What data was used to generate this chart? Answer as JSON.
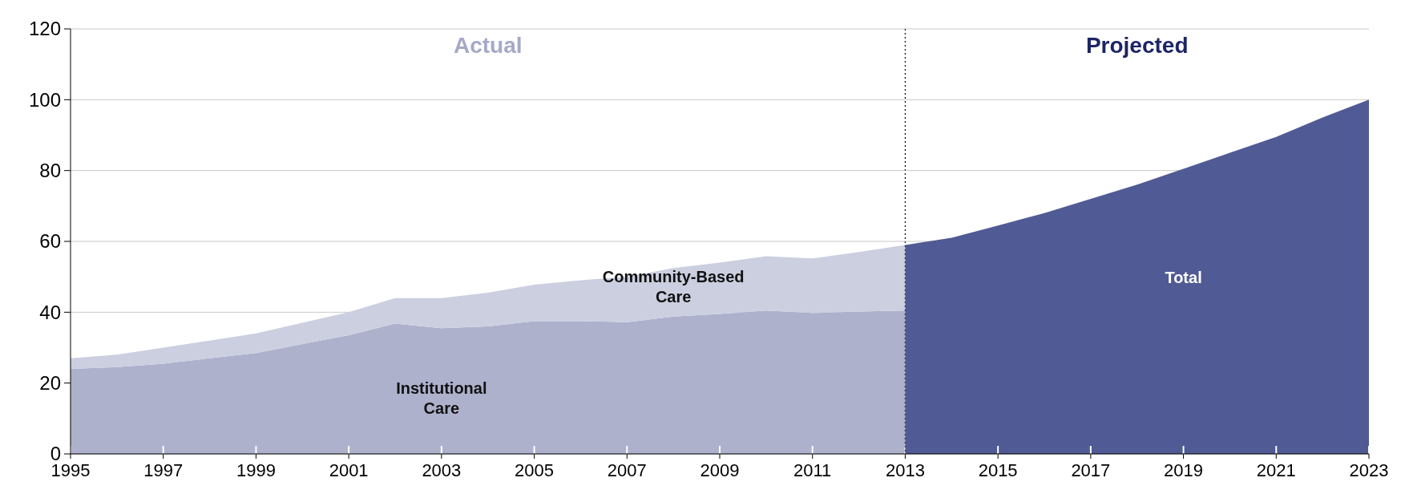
{
  "chart_data": [
    {
      "type": "area",
      "stacked": true,
      "x": [
        1995,
        1996,
        1997,
        1998,
        1999,
        2000,
        2001,
        2002,
        2003,
        2004,
        2005,
        2006,
        2007,
        2008,
        2009,
        2010,
        2011,
        2012,
        2013
      ],
      "series": [
        {
          "name": "Institutional Care",
          "color": "#adb1cc",
          "values": [
            24,
            24.5,
            25.5,
            27,
            28.5,
            31,
            33.5,
            36.8,
            35.5,
            36,
            37.5,
            37.5,
            37.2,
            38.8,
            39.5,
            40.5,
            39.8,
            40.2,
            40.5
          ]
        },
        {
          "name": "Community-Based Care",
          "color": "#cbcfe0",
          "values": [
            3,
            3.5,
            4.5,
            5,
            5.5,
            6,
            6.5,
            7.2,
            8.5,
            9.5,
            10.3,
            11.5,
            12.8,
            13.7,
            14.5,
            15.3,
            15.4,
            16.8,
            18.5
          ]
        }
      ],
      "xlim": [
        1995,
        2013
      ],
      "xticks": [
        1995,
        1997,
        1999,
        2001,
        2003,
        2005,
        2007,
        2009,
        2011,
        2013
      ],
      "ylim": [
        0,
        120
      ],
      "yticks": [
        0,
        20,
        40,
        60,
        80,
        100,
        120
      ],
      "grid": "y",
      "ref_lines": [
        {
          "axis": "x",
          "value": 2013,
          "line_style": "dotted",
          "color": "#000000"
        }
      ],
      "annotations": [
        "Actual"
      ]
    },
    {
      "type": "area",
      "x": [
        2013,
        2014,
        2015,
        2016,
        2017,
        2018,
        2019,
        2020,
        2021,
        2022,
        2023
      ],
      "series": [
        {
          "name": "Total",
          "color": "#505a94",
          "values": [
            59,
            61,
            64.5,
            68,
            72,
            76,
            80.5,
            85,
            89.5,
            95,
            100
          ]
        }
      ],
      "xlim": [
        2013,
        2023
      ],
      "xticks": [
        2015,
        2017,
        2019,
        2021,
        2023
      ],
      "ylim": [
        0,
        120
      ],
      "yticks": [
        0,
        20,
        40,
        60,
        80,
        100,
        120
      ],
      "grid": "y",
      "tick_labels": "x",
      "annotations": [
        "Projected"
      ]
    }
  ]
}
